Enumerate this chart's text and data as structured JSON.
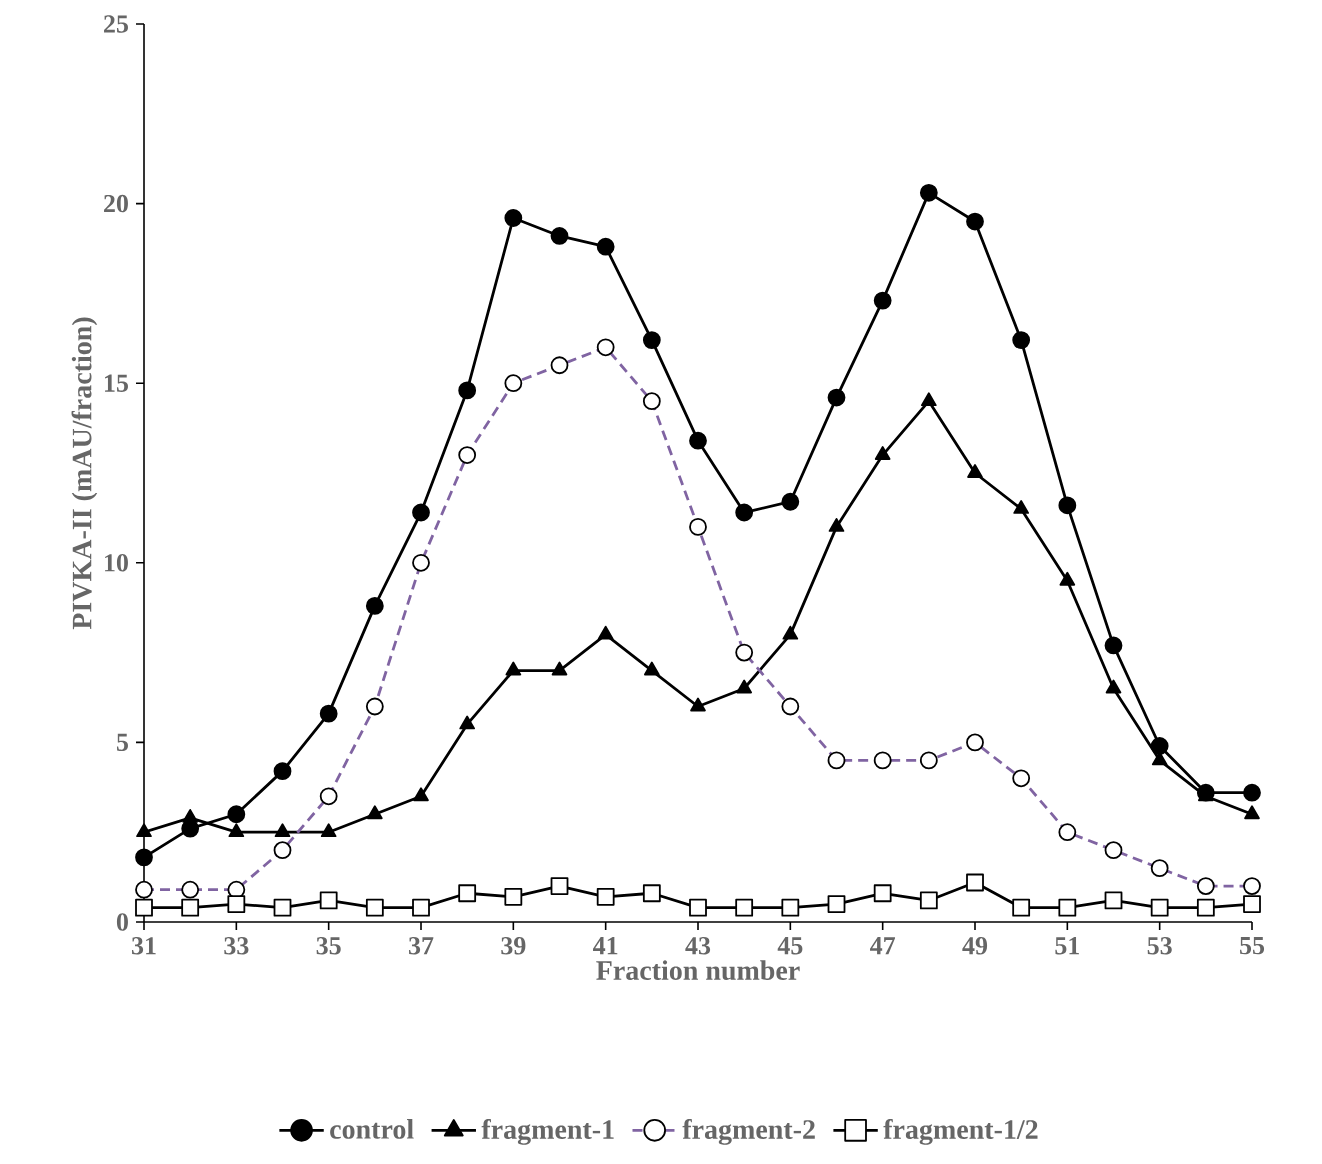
{
  "chart_data": {
    "type": "line",
    "xlabel": "Fraction number",
    "ylabel": "PIVKA-II (mAU/fraction)",
    "x": [
      31,
      32,
      33,
      34,
      35,
      36,
      37,
      38,
      39,
      40,
      41,
      42,
      43,
      44,
      45,
      46,
      47,
      48,
      49,
      50,
      51,
      52,
      53,
      54,
      55
    ],
    "xlim": [
      31,
      55
    ],
    "xticks": [
      31,
      33,
      35,
      37,
      39,
      41,
      43,
      45,
      47,
      49,
      51,
      53,
      55
    ],
    "ylim": [
      0,
      25
    ],
    "yticks": [
      0,
      5,
      10,
      15,
      20,
      25
    ],
    "grid": false,
    "legend": "bottom",
    "series": [
      {
        "name": "control",
        "color": "#000000",
        "marker": "circle",
        "line_style": "solid",
        "values": [
          1.8,
          2.6,
          3.0,
          4.2,
          5.8,
          8.8,
          11.4,
          14.8,
          19.6,
          19.1,
          18.8,
          16.2,
          13.4,
          11.4,
          11.7,
          14.6,
          17.3,
          20.3,
          19.5,
          16.2,
          11.6,
          7.7,
          4.9,
          3.6,
          3.6
        ]
      },
      {
        "name": "fragment-1",
        "color": "#000000",
        "marker": "triangle",
        "line_style": "solid",
        "values": [
          2.5,
          2.9,
          2.5,
          2.5,
          2.5,
          3.0,
          3.5,
          5.5,
          7.0,
          7.0,
          8.0,
          7.0,
          6.0,
          6.5,
          8.0,
          11.0,
          13.0,
          14.5,
          12.5,
          11.5,
          9.5,
          6.5,
          4.5,
          3.5,
          3.0
        ]
      },
      {
        "name": "fragment-2",
        "color": "#8064a2",
        "marker": "circle",
        "line_style": "dashed",
        "values": [
          0.9,
          0.9,
          0.9,
          2.0,
          3.5,
          6.0,
          10.0,
          13.0,
          15.0,
          15.5,
          16.0,
          14.5,
          11.0,
          7.5,
          6.0,
          4.5,
          4.5,
          4.5,
          5.0,
          4.0,
          2.5,
          2.0,
          1.5,
          1.0,
          1.0
        ]
      },
      {
        "name": "fragment-1/2",
        "color": "#000000",
        "marker": "square",
        "line_style": "solid",
        "values": [
          0.4,
          0.4,
          0.5,
          0.4,
          0.6,
          0.4,
          0.4,
          0.8,
          0.7,
          1.0,
          0.7,
          0.8,
          0.4,
          0.4,
          0.4,
          0.5,
          0.8,
          0.6,
          1.1,
          0.4,
          0.4,
          0.6,
          0.4,
          0.4,
          0.5
        ]
      }
    ]
  }
}
